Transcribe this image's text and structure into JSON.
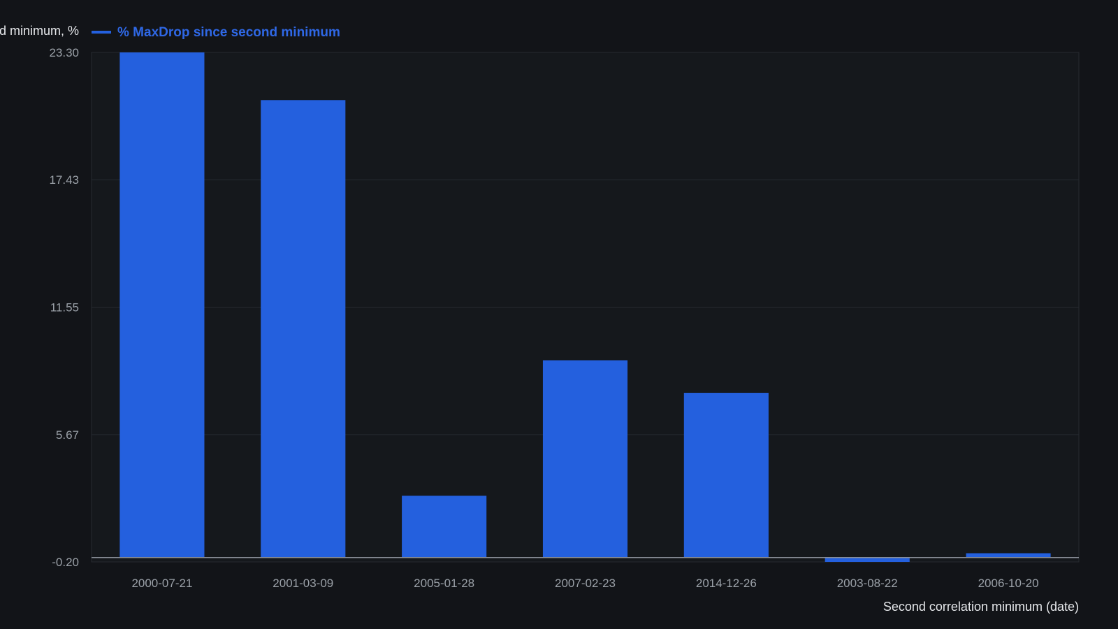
{
  "chart_data": {
    "type": "bar",
    "ylabel": "% MaxDrop since second minimum, %",
    "xlabel": "Second correlation minimum (date)",
    "legend": {
      "position": "top-left",
      "entries": [
        "% MaxDrop since second minimum"
      ]
    },
    "categories": [
      "2000-07-21",
      "2001-03-09",
      "2005-01-28",
      "2007-02-23",
      "2014-12-26",
      "2003-08-22",
      "2006-10-20"
    ],
    "series": [
      {
        "name": "% MaxDrop since second minimum",
        "values": [
          23.3,
          21.1,
          2.85,
          9.1,
          7.6,
          -0.2,
          0.2
        ]
      }
    ],
    "ylim": [
      -0.2,
      23.3
    ],
    "yticks": [
      "23.30",
      "17.43",
      "11.55",
      "5.67",
      "-0.20"
    ],
    "grid": true,
    "colors": {
      "bar": "#2460DE",
      "background": "#121418",
      "plot_background": "#15181C",
      "grid": "#262A30",
      "tick_text": "#9BA1A8",
      "axis_title_text": "#E6E8EB",
      "legend_text": "#2F68E6"
    }
  }
}
